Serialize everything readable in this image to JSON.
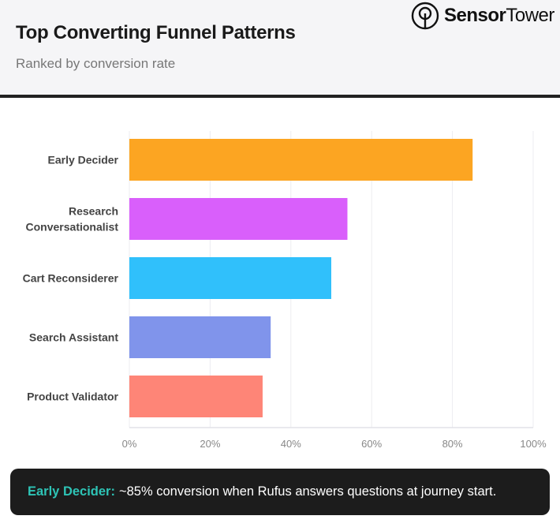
{
  "header": {
    "title": "Top Converting Funnel Patterns",
    "subtitle": "Ranked by conversion rate",
    "logo_bold": "Sensor",
    "logo_light": "Tower"
  },
  "chart_data": {
    "type": "bar",
    "orientation": "horizontal",
    "title": "Top Converting Funnel Patterns",
    "subtitle": "Ranked by conversion rate",
    "categories": [
      [
        "Early Decider"
      ],
      [
        "Research",
        "Conversationalist"
      ],
      [
        "Cart Reconsiderer"
      ],
      [
        "Search Assistant"
      ],
      [
        "Product Validator"
      ]
    ],
    "values": [
      85,
      54,
      50,
      35,
      33
    ],
    "colors": [
      "#fca522",
      "#d95ffb",
      "#30c0fb",
      "#8094eb",
      "#fe8577"
    ],
    "xlim": [
      0,
      100
    ],
    "xticks": [
      0,
      20,
      40,
      60,
      80,
      100
    ],
    "xtick_labels": [
      "0%",
      "20%",
      "40%",
      "60%",
      "80%",
      "100%"
    ],
    "xlabel": "",
    "ylabel": "",
    "grid": true,
    "legend": "none"
  },
  "callout": {
    "highlight": "Early Decider:",
    "text": "~85% conversion when Rufus answers questions at journey start.",
    "highlight_color": "#2ec4b6"
  }
}
